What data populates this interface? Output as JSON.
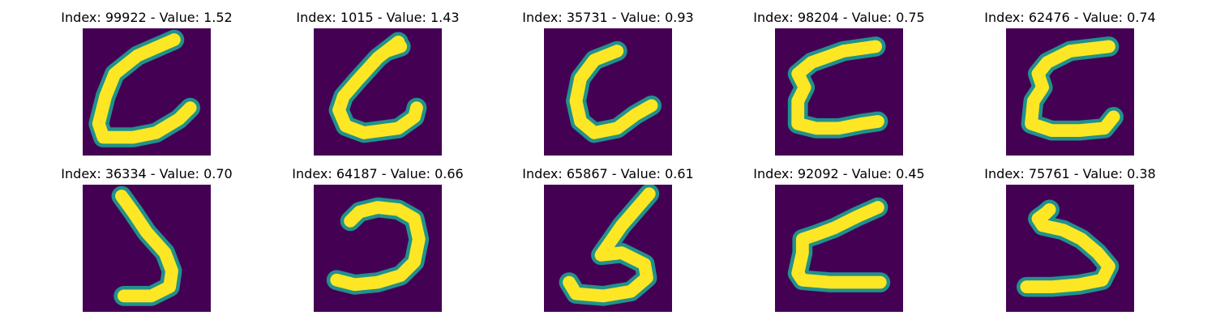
{
  "colors": {
    "background": "#440154",
    "mid": "#21918c",
    "high": "#fde725"
  },
  "panels": [
    {
      "title": "Index: 99922 - Value: 1.52",
      "index": 99922,
      "value": 1.52,
      "glyph": "hook-c"
    },
    {
      "title": "Index: 1015 - Value: 1.43",
      "index": 1015,
      "value": 1.43,
      "glyph": "hook-c-small"
    },
    {
      "title": "Index: 35731 - Value: 0.93",
      "index": 35731,
      "value": 0.93,
      "glyph": "hook-c-wide"
    },
    {
      "title": "Index: 98204 - Value: 0.75",
      "index": 98204,
      "value": 0.75,
      "glyph": "z-shape"
    },
    {
      "title": "Index: 62476 - Value: 0.74",
      "index": 62476,
      "value": 0.74,
      "glyph": "z-shape-2"
    },
    {
      "title": "Index: 36334 - Value: 0.70",
      "index": 36334,
      "value": 0.7,
      "glyph": "j-curve"
    },
    {
      "title": "Index: 64187 - Value: 0.66",
      "index": 64187,
      "value": 0.66,
      "glyph": "reverse-c"
    },
    {
      "title": "Index: 65867 - Value: 0.61",
      "index": 65867,
      "value": 0.61,
      "glyph": "five"
    },
    {
      "title": "Index: 92092 - Value: 0.45",
      "index": 92092,
      "value": 0.45,
      "glyph": "angled-l"
    },
    {
      "title": "Index: 75761 - Value: 0.38",
      "index": 75761,
      "value": 0.38,
      "glyph": "s-shape"
    }
  ]
}
